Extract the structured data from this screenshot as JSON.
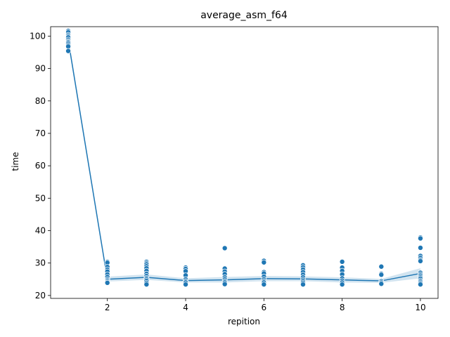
{
  "chart_data": {
    "type": "scatter",
    "title": "average_asm_f64",
    "xlabel": "repition",
    "ylabel": "time",
    "xlim": [
      0.55,
      10.45
    ],
    "ylim": [
      19.1,
      102.9
    ],
    "x_ticks": [
      2,
      4,
      6,
      8,
      10
    ],
    "y_ticks": [
      20,
      30,
      40,
      50,
      60,
      70,
      80,
      90,
      100
    ],
    "grid": false,
    "legend": "none",
    "colors": {
      "points": "#1f77b4",
      "point_edge": "#ffffff",
      "line": "#1f77b4",
      "band": "#1f77b4"
    },
    "scatter_points": [
      {
        "x": 1,
        "y": [
          101.6,
          101.2,
          100.4,
          100.0,
          99.6,
          98.9,
          98.4,
          98.1,
          97.7,
          97.2,
          96.8,
          95.4
        ]
      },
      {
        "x": 2,
        "y": [
          30.4,
          30.1,
          28.8,
          28.0,
          27.4,
          26.5,
          25.7,
          25.0,
          24.6,
          24.2,
          23.9
        ]
      },
      {
        "x": 3,
        "y": [
          30.4,
          30.0,
          29.6,
          29.0,
          28.4,
          27.6,
          26.7,
          26.0,
          25.4,
          25.0,
          24.5,
          23.9,
          23.4
        ]
      },
      {
        "x": 4,
        "y": [
          28.6,
          28.2,
          27.5,
          26.2,
          25.0,
          24.4,
          24.0,
          23.4
        ]
      },
      {
        "x": 5,
        "y": [
          34.6,
          28.3,
          27.4,
          26.6,
          25.6,
          25.0,
          24.4,
          24.0,
          23.5
        ]
      },
      {
        "x": 6,
        "y": [
          30.7,
          30.2,
          27.2,
          26.8,
          25.8,
          25.0,
          24.4,
          24.0,
          23.4
        ]
      },
      {
        "x": 7,
        "y": [
          29.3,
          28.7,
          28.0,
          27.2,
          26.4,
          25.6,
          24.9,
          24.4,
          23.9,
          23.4
        ]
      },
      {
        "x": 8,
        "y": [
          30.4,
          28.6,
          27.6,
          26.5,
          25.3,
          24.6,
          24.0,
          23.4
        ]
      },
      {
        "x": 9,
        "y": [
          28.9,
          26.7,
          26.4,
          24.4,
          24.0,
          23.6
        ]
      },
      {
        "x": 10,
        "y": [
          37.9,
          37.6,
          34.7,
          32.2,
          31.6,
          31.0,
          30.6,
          27.0,
          26.5,
          26.1,
          25.6,
          25.2,
          24.6,
          24.2,
          23.8,
          23.4
        ]
      }
    ],
    "mean_line": {
      "x": [
        1,
        2,
        3,
        4,
        5,
        6,
        7,
        8,
        9,
        10
      ],
      "y": [
        98.7,
        25.0,
        25.6,
        24.6,
        24.8,
        25.2,
        25.1,
        24.8,
        24.5,
        26.8
      ]
    },
    "ci_band": {
      "x": [
        1,
        2,
        3,
        4,
        5,
        6,
        7,
        8,
        9,
        10
      ],
      "lower": [
        97.6,
        24.3,
        24.8,
        24.0,
        24.0,
        24.4,
        24.4,
        24.0,
        23.9,
        25.3
      ],
      "upper": [
        99.8,
        25.8,
        26.5,
        25.3,
        25.7,
        26.0,
        25.9,
        25.6,
        25.1,
        28.4
      ]
    }
  }
}
